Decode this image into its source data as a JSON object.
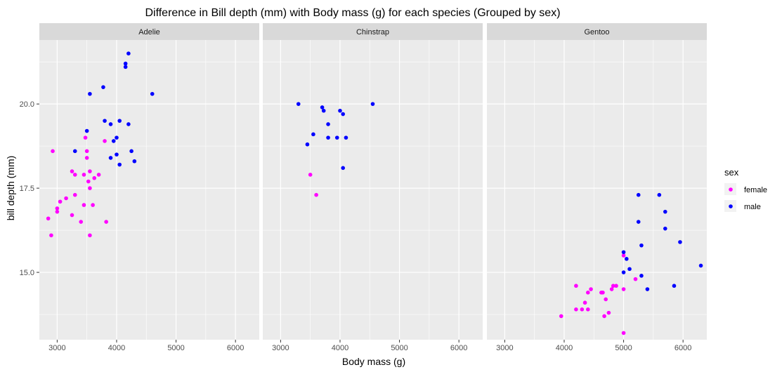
{
  "chart_data": {
    "type": "scatter",
    "title": "Difference in Bill depth (mm) with Body mass (g) for each species (Grouped by sex)",
    "xlabel": "Body mass (g)",
    "ylabel": "bill depth (mm)",
    "xlim": [
      2700,
      6400
    ],
    "ylim": [
      13.0,
      21.9
    ],
    "x_ticks": [
      3000,
      4000,
      5000,
      6000
    ],
    "x_tick_labels": [
      "3000",
      "4000",
      "5000",
      "6000"
    ],
    "y_ticks": [
      15.0,
      17.5,
      20.0
    ],
    "y_tick_labels": [
      "15.0",
      "17.5",
      "20.0"
    ],
    "grid": true,
    "legend": {
      "title": "sex",
      "placement": "right",
      "entries": [
        {
          "label": "female",
          "color": "#FF00FF"
        },
        {
          "label": "male",
          "color": "#0000FF"
        }
      ]
    },
    "colors": {
      "female": "#FF00FF",
      "male": "#0000FF",
      "panel_bg": "#EBEBEB",
      "strip_bg": "#D9D9D9"
    },
    "panels": [
      {
        "label": "Adelie",
        "female": [
          [
            2850,
            16.6
          ],
          [
            2900,
            16.1
          ],
          [
            2925,
            18.6
          ],
          [
            3000,
            16.8
          ],
          [
            3000,
            16.9
          ],
          [
            3050,
            17.1
          ],
          [
            3150,
            17.2
          ],
          [
            3250,
            16.7
          ],
          [
            3250,
            18.0
          ],
          [
            3300,
            17.3
          ],
          [
            3300,
            17.9
          ],
          [
            3400,
            16.5
          ],
          [
            3450,
            17.9
          ],
          [
            3450,
            17.0
          ],
          [
            3475,
            19.0
          ],
          [
            3500,
            18.4
          ],
          [
            3500,
            18.6
          ],
          [
            3525,
            17.7
          ],
          [
            3550,
            18.0
          ],
          [
            3550,
            17.5
          ],
          [
            3550,
            16.1
          ],
          [
            3600,
            17.0
          ],
          [
            3625,
            17.8
          ],
          [
            3700,
            17.9
          ],
          [
            3800,
            18.9
          ],
          [
            3825,
            16.5
          ]
        ],
        "male": [
          [
            3300,
            18.6
          ],
          [
            3500,
            19.2
          ],
          [
            3550,
            20.3
          ],
          [
            3775,
            20.5
          ],
          [
            3800,
            19.5
          ],
          [
            3900,
            18.4
          ],
          [
            3900,
            19.4
          ],
          [
            3950,
            18.9
          ],
          [
            4000,
            19.0
          ],
          [
            4000,
            18.5
          ],
          [
            4050,
            18.2
          ],
          [
            4050,
            19.5
          ],
          [
            4150,
            21.2
          ],
          [
            4150,
            21.1
          ],
          [
            4200,
            21.5
          ],
          [
            4200,
            19.4
          ],
          [
            4250,
            18.6
          ],
          [
            4300,
            18.3
          ],
          [
            4600,
            20.3
          ]
        ]
      },
      {
        "label": "Chinstrap",
        "female": [
          [
            3500,
            17.9
          ],
          [
            3600,
            17.3
          ]
        ],
        "male": [
          [
            3300,
            20.0
          ],
          [
            3450,
            18.8
          ],
          [
            3550,
            19.1
          ],
          [
            3700,
            19.9
          ],
          [
            3725,
            19.8
          ],
          [
            3800,
            19.4
          ],
          [
            3800,
            19.0
          ],
          [
            3950,
            19.0
          ],
          [
            4000,
            19.8
          ],
          [
            4050,
            19.7
          ],
          [
            4050,
            18.1
          ],
          [
            4100,
            19.0
          ],
          [
            4550,
            20.0
          ]
        ]
      },
      {
        "label": "Gentoo",
        "female": [
          [
            3950,
            13.7
          ],
          [
            4200,
            14.6
          ],
          [
            4200,
            13.9
          ],
          [
            4300,
            13.9
          ],
          [
            4350,
            14.1
          ],
          [
            4400,
            13.9
          ],
          [
            4400,
            14.4
          ],
          [
            4450,
            14.5
          ],
          [
            4625,
            14.4
          ],
          [
            4650,
            14.4
          ],
          [
            4675,
            13.7
          ],
          [
            4700,
            14.2
          ],
          [
            4750,
            13.8
          ],
          [
            4800,
            14.5
          ],
          [
            4825,
            14.6
          ],
          [
            4875,
            14.6
          ],
          [
            5000,
            15.5
          ],
          [
            5000,
            14.5
          ],
          [
            5000,
            13.2
          ],
          [
            5200,
            14.8
          ]
        ],
        "male": [
          [
            5000,
            15.6
          ],
          [
            5000,
            15.0
          ],
          [
            5050,
            15.4
          ],
          [
            5100,
            15.1
          ],
          [
            5250,
            17.3
          ],
          [
            5250,
            16.5
          ],
          [
            5300,
            15.8
          ],
          [
            5300,
            14.9
          ],
          [
            5400,
            14.5
          ],
          [
            5600,
            17.3
          ],
          [
            5700,
            16.8
          ],
          [
            5700,
            16.3
          ],
          [
            5850,
            14.6
          ],
          [
            5950,
            15.9
          ],
          [
            6300,
            15.2
          ]
        ]
      }
    ]
  }
}
